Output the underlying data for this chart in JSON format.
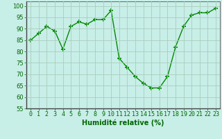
{
  "x": [
    0,
    1,
    2,
    3,
    4,
    5,
    6,
    7,
    8,
    9,
    10,
    11,
    12,
    13,
    14,
    15,
    16,
    17,
    18,
    19,
    20,
    21,
    22,
    23
  ],
  "y": [
    85,
    88,
    91,
    89,
    81,
    91,
    93,
    92,
    94,
    94,
    98,
    77,
    73,
    69,
    66,
    64,
    64,
    69,
    82,
    91,
    96,
    97,
    97,
    99
  ],
  "line_color": "#008800",
  "marker": "+",
  "bg_color": "#c8eee8",
  "grid_color": "#aaccbb",
  "xlabel": "Humidité relative (%)",
  "ylim": [
    55,
    102
  ],
  "yticks": [
    55,
    60,
    65,
    70,
    75,
    80,
    85,
    90,
    95,
    100
  ],
  "xlim": [
    -0.5,
    23.5
  ],
  "xlabel_color": "#006600",
  "xlabel_fontsize": 7,
  "tick_fontsize": 6,
  "tick_color": "#006600",
  "linewidth": 1.0,
  "markersize": 5,
  "marker_color": "#008800"
}
